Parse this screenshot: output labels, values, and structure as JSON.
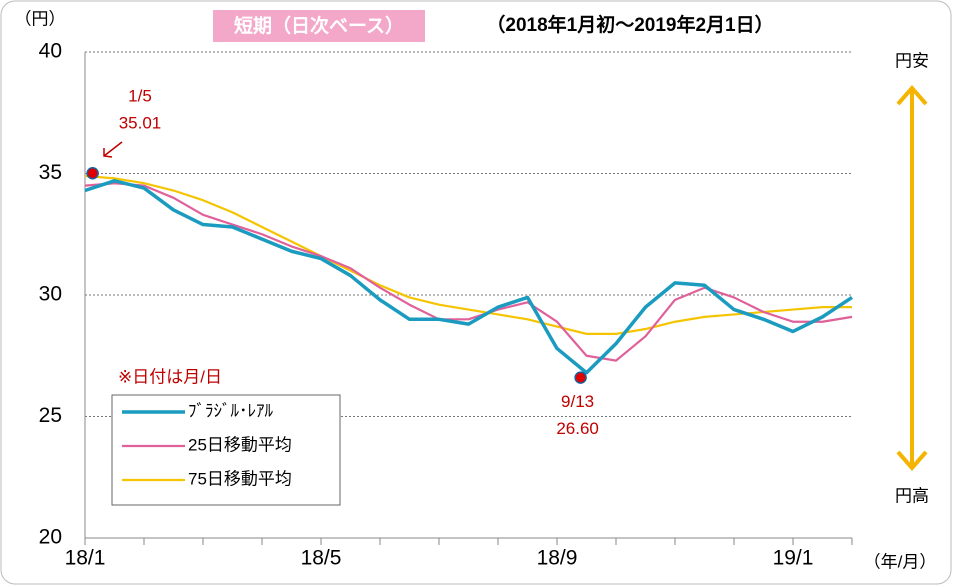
{
  "chart_data": {
    "type": "line",
    "title": "短期（日次ベース）",
    "subtitle": "（2018年1月初～2019年2月1日）",
    "y_unit": "（円）",
    "x_unit": "（年/月）",
    "top_label": "円安",
    "bottom_label": "円高",
    "note": "※日付は月/日",
    "categories": [
      "18/1",
      null,
      null,
      null,
      null,
      null,
      null,
      null,
      "18/5",
      null,
      null,
      null,
      null,
      null,
      null,
      null,
      "18/9",
      null,
      null,
      null,
      null,
      null,
      null,
      null,
      "19/1",
      null,
      null
    ],
    "series": [
      {
        "name": "ﾌﾞﾗｼﾞﾙ･ﾚｱﾙ",
        "color": "#1a9bbf",
        "values": [
          34.3,
          34.7,
          34.4,
          33.5,
          32.9,
          32.8,
          32.3,
          31.8,
          31.5,
          30.8,
          29.8,
          29.0,
          29.0,
          28.8,
          29.5,
          29.9,
          27.8,
          26.8,
          28.0,
          29.5,
          30.5,
          30.4,
          29.4,
          29.0,
          28.5,
          29.1,
          29.9
        ]
      },
      {
        "name": "25日移動平均",
        "color": "#e0609a",
        "values": [
          34.5,
          34.6,
          34.5,
          34.0,
          33.3,
          32.9,
          32.5,
          32.0,
          31.6,
          31.1,
          30.3,
          29.6,
          29.0,
          29.0,
          29.4,
          29.7,
          28.9,
          27.5,
          27.3,
          28.3,
          29.8,
          30.3,
          29.9,
          29.3,
          28.9,
          28.9,
          29.1
        ]
      },
      {
        "name": "75日移動平均",
        "color": "#f5c400",
        "values": [
          34.9,
          34.8,
          34.6,
          34.3,
          33.9,
          33.4,
          32.8,
          32.2,
          31.6,
          31.0,
          30.4,
          29.9,
          29.6,
          29.4,
          29.2,
          29.0,
          28.7,
          28.4,
          28.4,
          28.6,
          28.9,
          29.1,
          29.2,
          29.3,
          29.4,
          29.5,
          29.5
        ]
      }
    ],
    "annotations": [
      {
        "date": "1/5",
        "value": 35.01,
        "label": "35.01"
      },
      {
        "date": "9/13",
        "value": 26.6,
        "label": "26.60"
      }
    ],
    "ylim": [
      20,
      40
    ],
    "yticks": [
      20,
      25,
      30,
      35,
      40
    ],
    "grid": true
  }
}
